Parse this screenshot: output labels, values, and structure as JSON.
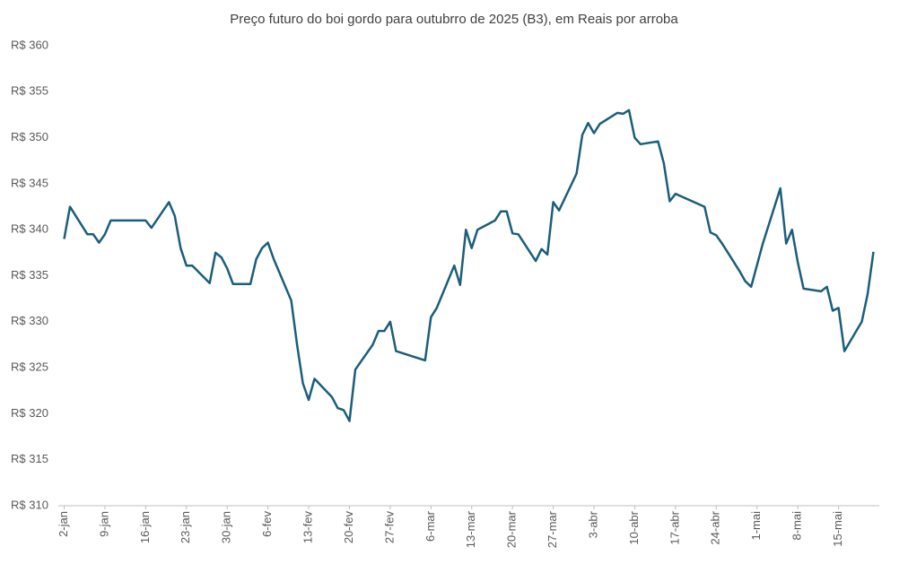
{
  "chart_data": {
    "type": "line",
    "title": "Preço futuro do boi gordo para outubrro de 2025 (B3), em Reais por arroba",
    "series": [
      {
        "color": "#1b5e7b",
        "x": [
          0,
          1,
          4,
          5,
          6,
          7,
          8,
          11,
          12,
          13,
          14,
          15,
          18,
          19,
          20,
          21,
          22,
          25,
          26,
          27,
          28,
          29,
          32,
          33,
          34,
          35,
          36,
          39,
          40,
          41,
          42,
          43,
          46,
          47,
          48,
          49,
          50,
          53,
          54,
          55,
          56,
          57,
          62,
          63,
          64,
          67,
          68,
          69,
          70,
          71,
          74,
          75,
          76,
          77,
          78,
          81,
          82,
          83,
          84,
          85,
          88,
          89,
          90,
          91,
          92,
          95,
          96,
          97,
          98,
          99,
          102,
          103,
          104,
          105,
          110,
          111,
          112,
          113,
          116,
          117,
          118,
          120,
          123,
          124,
          125,
          126,
          127,
          130,
          131,
          132,
          133,
          134,
          137,
          138,
          139
        ],
        "values": [
          339,
          342.5,
          339.5,
          339.5,
          338.6,
          339.5,
          341,
          341,
          341,
          341,
          341,
          340.2,
          343,
          341.5,
          338,
          336.1,
          336.1,
          334.2,
          337.5,
          337,
          335.8,
          334.1,
          334.1,
          336.8,
          338,
          338.6,
          336.8,
          332.3,
          327.5,
          323.3,
          321.5,
          323.8,
          321.8,
          320.6,
          320.4,
          319.2,
          324.8,
          327.5,
          329,
          329,
          330,
          326.8,
          325.8,
          330.5,
          331.5,
          336.1,
          334,
          340,
          338,
          340,
          341,
          342,
          342,
          339.6,
          339.5,
          336.6,
          337.9,
          337.3,
          343,
          342.1,
          346.1,
          350.3,
          351.6,
          350.5,
          351.5,
          352.7,
          352.6,
          353,
          350,
          349.3,
          349.6,
          347.2,
          343.1,
          343.9,
          342.5,
          339.7,
          339.4,
          338.5,
          335.5,
          334.4,
          333.8,
          338.5,
          344.5,
          338.5,
          340,
          336.5,
          333.6,
          333.3,
          333.8,
          331.2,
          331.5,
          326.8,
          330,
          333,
          337.6
        ]
      }
    ],
    "xlim": [
      -1,
      140
    ],
    "xticks": [
      {
        "value": 0,
        "label": "2-jan"
      },
      {
        "value": 7,
        "label": "9-jan"
      },
      {
        "value": 14,
        "label": "16-jan"
      },
      {
        "value": 21,
        "label": "23-jan"
      },
      {
        "value": 28,
        "label": "30-jan"
      },
      {
        "value": 35,
        "label": "6-fev"
      },
      {
        "value": 42,
        "label": "13-fev"
      },
      {
        "value": 49,
        "label": "20-fev"
      },
      {
        "value": 56,
        "label": "27-fev"
      },
      {
        "value": 63,
        "label": "6-mar"
      },
      {
        "value": 70,
        "label": "13-mar"
      },
      {
        "value": 77,
        "label": "20-mar"
      },
      {
        "value": 84,
        "label": "27-mar"
      },
      {
        "value": 91,
        "label": "3-abr"
      },
      {
        "value": 98,
        "label": "10-abr"
      },
      {
        "value": 105,
        "label": "17-abr"
      },
      {
        "value": 112,
        "label": "24-abr"
      },
      {
        "value": 119,
        "label": "1-mai"
      },
      {
        "value": 126,
        "label": "8-mai"
      },
      {
        "value": 133,
        "label": "15-mai"
      }
    ],
    "ylim": [
      310,
      360
    ],
    "yticks": [
      {
        "value": 310,
        "label": "R$ 310"
      },
      {
        "value": 315,
        "label": "R$ 315"
      },
      {
        "value": 320,
        "label": "R$ 320"
      },
      {
        "value": 325,
        "label": "R$ 325"
      },
      {
        "value": 330,
        "label": "R$ 330"
      },
      {
        "value": 335,
        "label": "R$ 335"
      },
      {
        "value": 340,
        "label": "R$ 340"
      },
      {
        "value": 345,
        "label": "R$ 345"
      },
      {
        "value": 350,
        "label": "R$ 350"
      },
      {
        "value": 355,
        "label": "R$ 355"
      },
      {
        "value": 360,
        "label": "R$ 360"
      }
    ],
    "grid": false
  }
}
